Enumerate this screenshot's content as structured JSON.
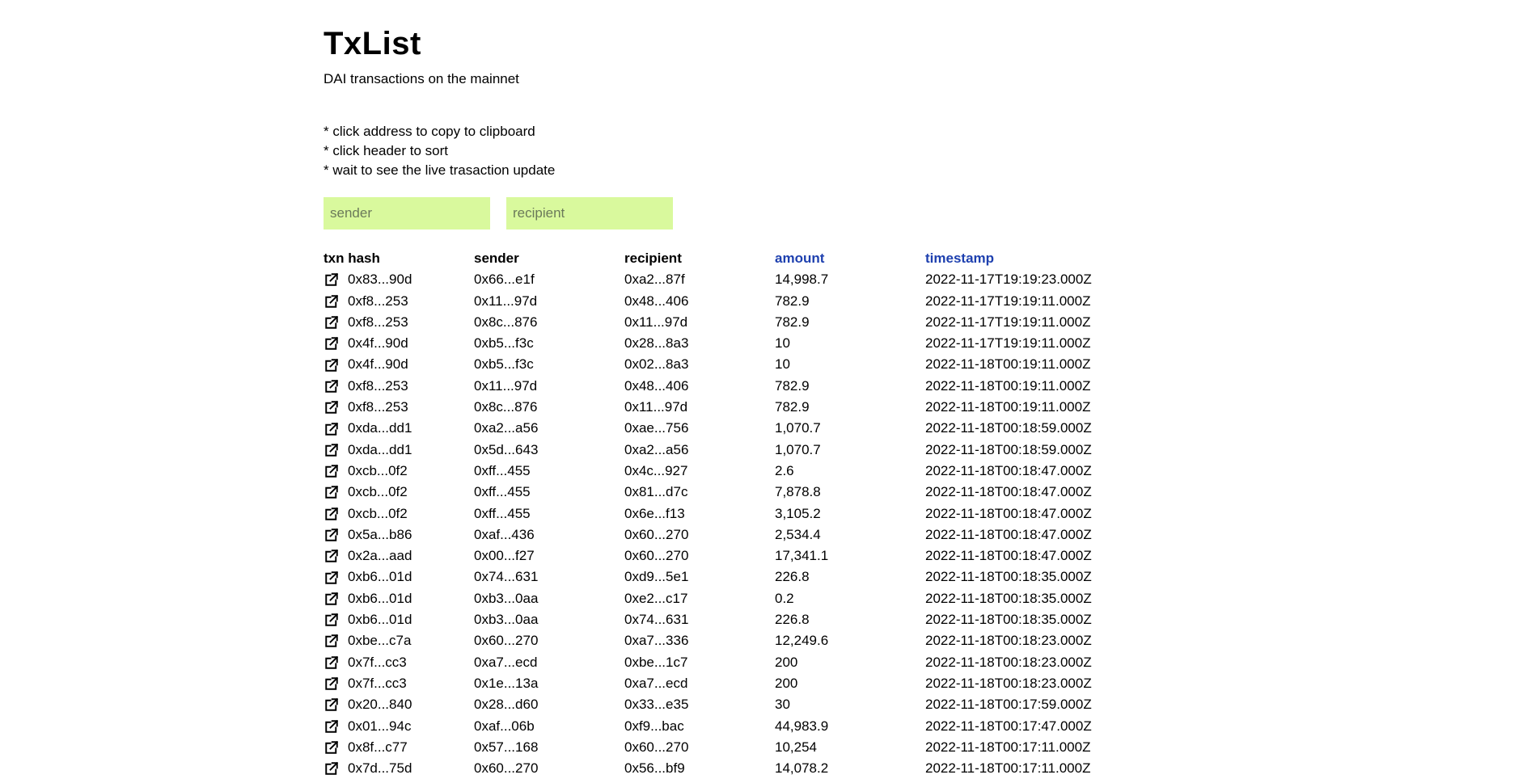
{
  "header": {
    "title": "TxList",
    "subtitle": "DAI transactions on the mainnet"
  },
  "hints": [
    "* click address to copy to clipboard",
    "* click header to sort",
    "* wait to see the live trasaction update"
  ],
  "filters": {
    "sender_placeholder": "sender",
    "recipient_placeholder": "recipient"
  },
  "table": {
    "columns": [
      {
        "key": "hash",
        "label": "txn hash",
        "active": false
      },
      {
        "key": "sender",
        "label": "sender",
        "active": false
      },
      {
        "key": "recipient",
        "label": "recipient",
        "active": false
      },
      {
        "key": "amount",
        "label": "amount",
        "active": true
      },
      {
        "key": "timestamp",
        "label": "timestamp",
        "active": true
      }
    ],
    "link_icon": "external-link-icon",
    "active_header_color": "#1e40af",
    "rows": [
      {
        "hash": "0x83...90d",
        "sender": "0x66...e1f",
        "recipient": "0xa2...87f",
        "amount": "14,998.7",
        "timestamp": "2022-11-17T19:19:23.000Z"
      },
      {
        "hash": "0xf8...253",
        "sender": "0x11...97d",
        "recipient": "0x48...406",
        "amount": "782.9",
        "timestamp": "2022-11-17T19:19:11.000Z"
      },
      {
        "hash": "0xf8...253",
        "sender": "0x8c...876",
        "recipient": "0x11...97d",
        "amount": "782.9",
        "timestamp": "2022-11-17T19:19:11.000Z"
      },
      {
        "hash": "0x4f...90d",
        "sender": "0xb5...f3c",
        "recipient": "0x28...8a3",
        "amount": "10",
        "timestamp": "2022-11-17T19:19:11.000Z"
      },
      {
        "hash": "0x4f...90d",
        "sender": "0xb5...f3c",
        "recipient": "0x02...8a3",
        "amount": "10",
        "timestamp": "2022-11-18T00:19:11.000Z"
      },
      {
        "hash": "0xf8...253",
        "sender": "0x11...97d",
        "recipient": "0x48...406",
        "amount": "782.9",
        "timestamp": "2022-11-18T00:19:11.000Z"
      },
      {
        "hash": "0xf8...253",
        "sender": "0x8c...876",
        "recipient": "0x11...97d",
        "amount": "782.9",
        "timestamp": "2022-11-18T00:19:11.000Z"
      },
      {
        "hash": "0xda...dd1",
        "sender": "0xa2...a56",
        "recipient": "0xae...756",
        "amount": "1,070.7",
        "timestamp": "2022-11-18T00:18:59.000Z"
      },
      {
        "hash": "0xda...dd1",
        "sender": "0x5d...643",
        "recipient": "0xa2...a56",
        "amount": "1,070.7",
        "timestamp": "2022-11-18T00:18:59.000Z"
      },
      {
        "hash": "0xcb...0f2",
        "sender": "0xff...455",
        "recipient": "0x4c...927",
        "amount": "2.6",
        "timestamp": "2022-11-18T00:18:47.000Z"
      },
      {
        "hash": "0xcb...0f2",
        "sender": "0xff...455",
        "recipient": "0x81...d7c",
        "amount": "7,878.8",
        "timestamp": "2022-11-18T00:18:47.000Z"
      },
      {
        "hash": "0xcb...0f2",
        "sender": "0xff...455",
        "recipient": "0x6e...f13",
        "amount": "3,105.2",
        "timestamp": "2022-11-18T00:18:47.000Z"
      },
      {
        "hash": "0x5a...b86",
        "sender": "0xaf...436",
        "recipient": "0x60...270",
        "amount": "2,534.4",
        "timestamp": "2022-11-18T00:18:47.000Z"
      },
      {
        "hash": "0x2a...aad",
        "sender": "0x00...f27",
        "recipient": "0x60...270",
        "amount": "17,341.1",
        "timestamp": "2022-11-18T00:18:47.000Z"
      },
      {
        "hash": "0xb6...01d",
        "sender": "0x74...631",
        "recipient": "0xd9...5e1",
        "amount": "226.8",
        "timestamp": "2022-11-18T00:18:35.000Z"
      },
      {
        "hash": "0xb6...01d",
        "sender": "0xb3...0aa",
        "recipient": "0xe2...c17",
        "amount": "0.2",
        "timestamp": "2022-11-18T00:18:35.000Z"
      },
      {
        "hash": "0xb6...01d",
        "sender": "0xb3...0aa",
        "recipient": "0x74...631",
        "amount": "226.8",
        "timestamp": "2022-11-18T00:18:35.000Z"
      },
      {
        "hash": "0xbe...c7a",
        "sender": "0x60...270",
        "recipient": "0xa7...336",
        "amount": "12,249.6",
        "timestamp": "2022-11-18T00:18:23.000Z"
      },
      {
        "hash": "0x7f...cc3",
        "sender": "0xa7...ecd",
        "recipient": "0xbe...1c7",
        "amount": "200",
        "timestamp": "2022-11-18T00:18:23.000Z"
      },
      {
        "hash": "0x7f...cc3",
        "sender": "0x1e...13a",
        "recipient": "0xa7...ecd",
        "amount": "200",
        "timestamp": "2022-11-18T00:18:23.000Z"
      },
      {
        "hash": "0x20...840",
        "sender": "0x28...d60",
        "recipient": "0x33...e35",
        "amount": "30",
        "timestamp": "2022-11-18T00:17:59.000Z"
      },
      {
        "hash": "0x01...94c",
        "sender": "0xaf...06b",
        "recipient": "0xf9...bac",
        "amount": "44,983.9",
        "timestamp": "2022-11-18T00:17:47.000Z"
      },
      {
        "hash": "0x8f...c77",
        "sender": "0x57...168",
        "recipient": "0x60...270",
        "amount": "10,254",
        "timestamp": "2022-11-18T00:17:11.000Z"
      },
      {
        "hash": "0x7d...75d",
        "sender": "0x60...270",
        "recipient": "0x56...bf9",
        "amount": "14,078.2",
        "timestamp": "2022-11-18T00:17:11.000Z"
      }
    ]
  }
}
